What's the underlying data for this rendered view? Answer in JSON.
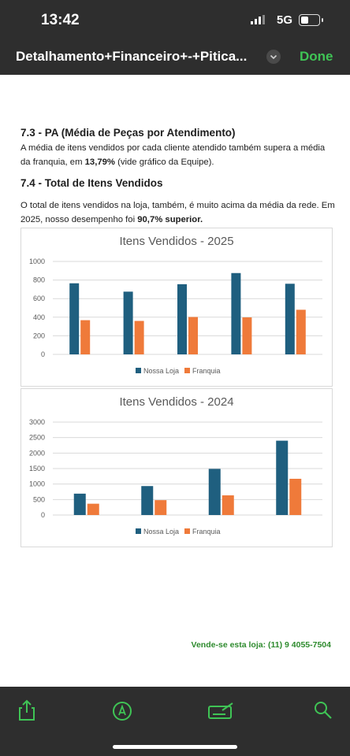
{
  "status": {
    "time": "13:42",
    "network": "5G"
  },
  "navbar": {
    "title": "Detalhamento+Financeiro+-+Pitica...",
    "done_label": "Done"
  },
  "document": {
    "section_73_heading": "7.3 - PA (Média de Peças por Atendimento)",
    "section_73_text_1": "A média de itens vendidos por cada cliente atendido também supera a média da franquia, em ",
    "section_73_bold": "13,79%",
    "section_73_text_2": " (vide gráfico da Equipe).",
    "section_74_heading": "7.4 - Total de Itens Vendidos",
    "section_74_text_1": "O total de itens vendidos na loja, também, é muito acima da média da rede. Em 2025, nosso desempenho foi ",
    "section_74_bold": "90,7% superior."
  },
  "footer": {
    "contact": "Vende-se esta loja: (11) 9 4055-7504"
  },
  "colors": {
    "series_1": "#1f5f7f",
    "series_2": "#ef7a3a",
    "accent": "#3fc455"
  },
  "chart_data": [
    {
      "type": "bar",
      "title": "Itens Vendidos - 2025",
      "categories": [
        "",
        "",
        "",
        "",
        ""
      ],
      "series": [
        {
          "name": "Nossa Loja",
          "values": [
            765,
            675,
            755,
            875,
            760
          ]
        },
        {
          "name": "Franquia",
          "values": [
            368,
            360,
            402,
            398,
            480
          ]
        }
      ],
      "ylim": [
        0,
        1000
      ],
      "yticks": [
        "0",
        "200",
        "400",
        "600",
        "800",
        "1000"
      ],
      "grid": true,
      "legend": "bottom"
    },
    {
      "type": "bar",
      "title": "Itens Vendidos - 2024",
      "categories": [
        "",
        "",
        "",
        ""
      ],
      "series": [
        {
          "name": "Nossa Loja",
          "values": [
            690,
            935,
            1490,
            2400
          ]
        },
        {
          "name": "Franquia",
          "values": [
            365,
            480,
            635,
            1170
          ]
        }
      ],
      "ylim": [
        0,
        3000
      ],
      "yticks": [
        "0",
        "500",
        "1000",
        "1500",
        "2000",
        "2500",
        "3000"
      ],
      "grid": true,
      "legend": "bottom"
    }
  ]
}
